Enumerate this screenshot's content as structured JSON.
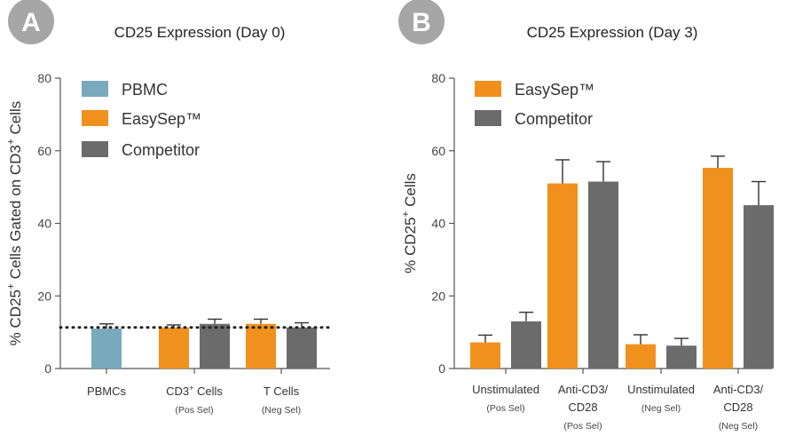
{
  "panels": [
    {
      "badge": "A",
      "title": "CD25 Expression (Day 0)",
      "ylabel_parts": [
        [
          "% CD25",
          ""
        ],
        [
          "+",
          "sup"
        ],
        [
          " Cells Gated on CD3",
          ""
        ],
        [
          "+",
          "sup"
        ],
        [
          " Cells",
          ""
        ]
      ],
      "yticks": [
        "0",
        "20",
        "40",
        "60",
        "80"
      ],
      "legend": [
        "PBMC",
        "EasySep™",
        "Competitor"
      ],
      "categories": [
        {
          "label_parts": [
            [
              "PBMCs",
              ""
            ]
          ],
          "sub": ""
        },
        {
          "label_parts": [
            [
              "CD3",
              ""
            ],
            [
              "+",
              "sup"
            ],
            [
              " Cells",
              ""
            ]
          ],
          "sub": "(Pos Sel)"
        },
        {
          "label_parts": [
            [
              "T Cells",
              ""
            ]
          ],
          "sub": "(Neg Sel)"
        }
      ]
    },
    {
      "badge": "B",
      "title": "CD25 Expression (Day 3)",
      "ylabel_parts": [
        [
          "% CD25",
          ""
        ],
        [
          "+",
          "sup"
        ],
        [
          " Cells",
          ""
        ]
      ],
      "yticks": [
        "0",
        "20",
        "40",
        "60",
        "80"
      ],
      "legend": [
        "EasySep™",
        "Competitor"
      ],
      "categories": [
        {
          "label_lines": [
            "Unstimulated"
          ],
          "sub": "(Pos Sel)"
        },
        {
          "label_lines": [
            "Anti-CD3/",
            "CD28"
          ],
          "sub": "(Pos Sel)"
        },
        {
          "label_lines": [
            "Unstimulated"
          ],
          "sub": "(Neg Sel)"
        },
        {
          "label_lines": [
            "Anti-CD3/",
            "CD28"
          ],
          "sub": "(Neg Sel)"
        }
      ]
    }
  ],
  "colors": {
    "pbmc": "#78aabb",
    "easysep": "#f0911e",
    "competitor": "#6b6b6b",
    "badge": "#a6a6a6",
    "axis": "#555555"
  },
  "chart_data": [
    {
      "type": "bar",
      "title": "CD25 Expression (Day 0)",
      "ylabel": "% CD25+ Cells Gated on CD3+ Cells",
      "ylim": [
        0,
        80
      ],
      "reference_line": 11.3,
      "categories": [
        "PBMCs",
        "CD3+ Cells (Pos Sel)",
        "T Cells (Neg Sel)"
      ],
      "series": [
        {
          "name": "PBMC",
          "values": [
            11.0,
            null,
            null
          ],
          "errors": [
            1.3,
            null,
            null
          ]
        },
        {
          "name": "EasySep™",
          "values": [
            null,
            11.3,
            12.3
          ],
          "errors": [
            null,
            0.7,
            1.3
          ]
        },
        {
          "name": "Competitor",
          "values": [
            null,
            12.3,
            11.3
          ],
          "errors": [
            null,
            1.3,
            1.3
          ]
        }
      ]
    },
    {
      "type": "bar",
      "title": "CD25 Expression (Day 3)",
      "ylabel": "% CD25+ Cells",
      "ylim": [
        0,
        80
      ],
      "categories": [
        "Unstimulated (Pos Sel)",
        "Anti-CD3/CD28 (Pos Sel)",
        "Unstimulated (Neg Sel)",
        "Anti-CD3/CD28 (Neg Sel)"
      ],
      "series": [
        {
          "name": "EasySep™",
          "values": [
            7.2,
            51.0,
            6.7,
            55.3
          ],
          "errors": [
            2.0,
            6.5,
            2.6,
            3.2
          ]
        },
        {
          "name": "Competitor",
          "values": [
            13.0,
            51.5,
            6.3,
            45.0
          ],
          "errors": [
            2.5,
            5.5,
            2.0,
            6.5
          ]
        }
      ]
    }
  ]
}
